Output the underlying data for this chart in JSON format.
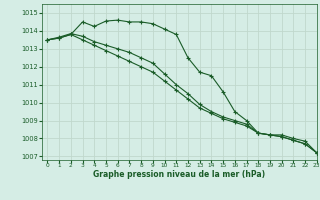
{
  "title": "Graphe pression niveau de la mer (hPa)",
  "background_color": "#d5ede5",
  "grid_color": "#c0d8cc",
  "line_color": "#1a5c28",
  "xlim": [
    -0.5,
    23
  ],
  "ylim": [
    1006.8,
    1015.5
  ],
  "yticks": [
    1007,
    1008,
    1009,
    1010,
    1011,
    1012,
    1013,
    1014,
    1015
  ],
  "xticks": [
    0,
    1,
    2,
    3,
    4,
    5,
    6,
    7,
    8,
    9,
    10,
    11,
    12,
    13,
    14,
    15,
    16,
    17,
    18,
    19,
    20,
    21,
    22,
    23
  ],
  "series": [
    [
      1013.5,
      1013.6,
      1013.8,
      1014.5,
      1014.25,
      1014.55,
      1014.6,
      1014.5,
      1014.5,
      1014.4,
      1014.1,
      1013.8,
      1012.5,
      1011.7,
      1011.5,
      1010.6,
      1009.5,
      1009.0,
      1008.3,
      1008.2,
      1008.2,
      1008.0,
      1007.85,
      1007.2
    ],
    [
      1013.5,
      1013.65,
      1013.85,
      1013.7,
      1013.4,
      1013.2,
      1013.0,
      1012.8,
      1012.5,
      1012.2,
      1011.6,
      1011.0,
      1010.5,
      1009.9,
      1009.5,
      1009.2,
      1009.0,
      1008.8,
      1008.3,
      1008.2,
      1008.1,
      1007.9,
      1007.7,
      1007.2
    ],
    [
      1013.5,
      1013.6,
      1013.8,
      1013.5,
      1013.2,
      1012.9,
      1012.6,
      1012.3,
      1012.0,
      1011.7,
      1011.2,
      1010.7,
      1010.2,
      1009.7,
      1009.4,
      1009.1,
      1008.9,
      1008.7,
      1008.3,
      1008.2,
      1008.1,
      1007.9,
      1007.7,
      1007.2
    ]
  ]
}
